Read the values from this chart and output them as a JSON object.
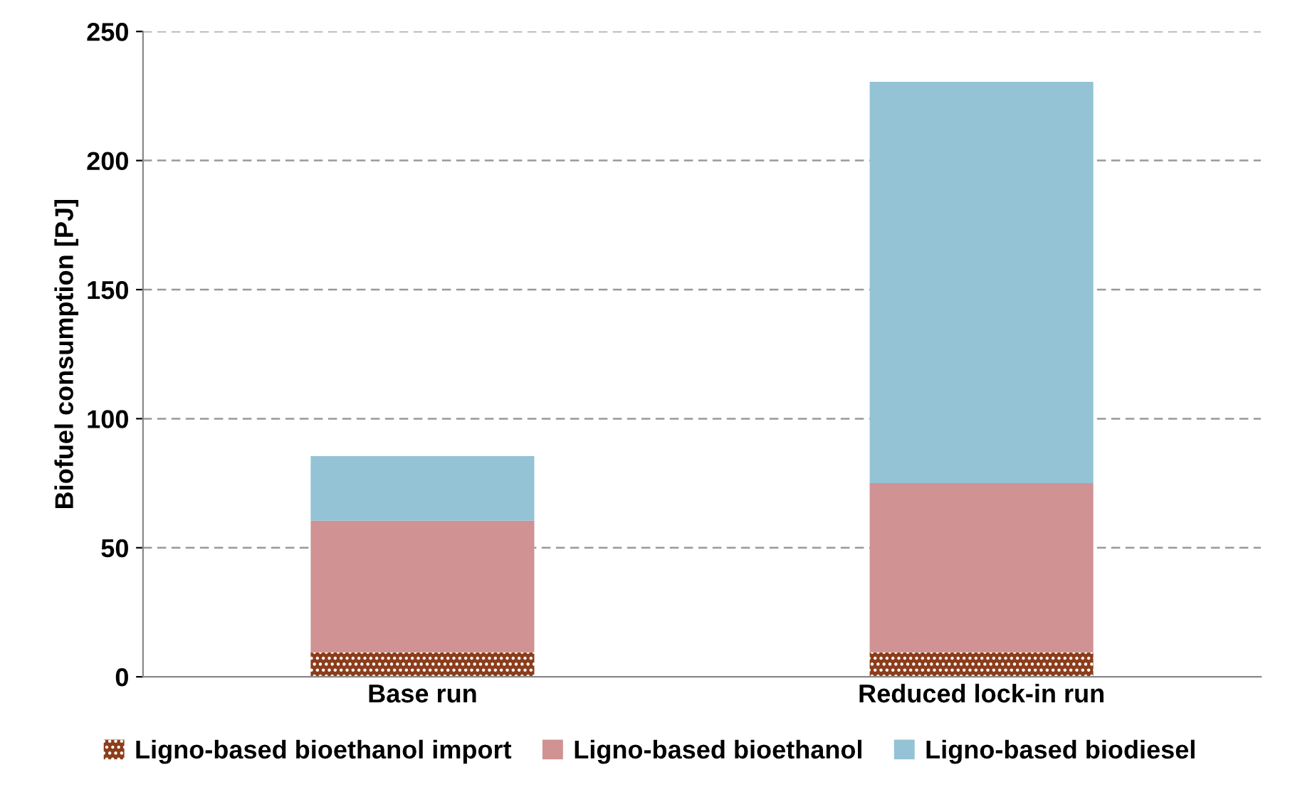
{
  "chart_data": {
    "type": "bar",
    "stacked": true,
    "ylabel": "Biofuel consumption [PJ]",
    "categories": [
      "Base run",
      "Reduced lock-in run"
    ],
    "series": [
      {
        "name": "Ligno-based bioethanol import",
        "color": "#8b3d1c",
        "values": [
          9.5,
          9.5
        ]
      },
      {
        "name": "Ligno-based bioethanol",
        "color": "#d09292",
        "values": [
          51,
          65.5
        ]
      },
      {
        "name": "Ligno-based biodiesel",
        "color": "#93c3d4",
        "values": [
          25,
          155.5
        ]
      }
    ],
    "ylim": [
      0,
      250
    ],
    "yticks": [
      0,
      50,
      100,
      150,
      200,
      250
    ],
    "grid": "y",
    "legend": "bottom"
  }
}
